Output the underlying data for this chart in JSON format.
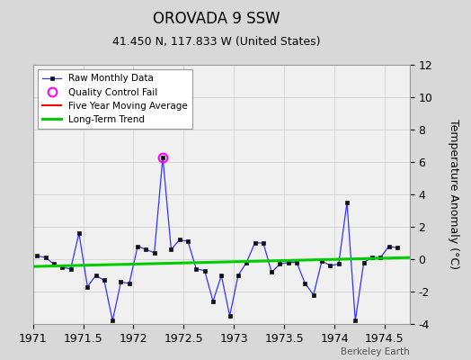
{
  "title": "OROVADA 9 SSW",
  "subtitle": "41.450 N, 117.833 W (United States)",
  "ylabel": "Temperature Anomaly (°C)",
  "attribution": "Berkeley Earth",
  "xlim": [
    1971.0,
    1974.75
  ],
  "ylim": [
    -4,
    12
  ],
  "yticks": [
    -4,
    -2,
    0,
    2,
    4,
    6,
    8,
    10,
    12
  ],
  "xticks": [
    1971.0,
    1971.5,
    1972.0,
    1972.5,
    1973.0,
    1973.5,
    1974.0,
    1974.5
  ],
  "background_color": "#d8d8d8",
  "plot_background": "#f0f0f0",
  "raw_x": [
    1971.042,
    1971.125,
    1971.208,
    1971.292,
    1971.375,
    1971.458,
    1971.542,
    1971.625,
    1971.708,
    1971.792,
    1971.875,
    1971.958,
    1972.042,
    1972.125,
    1972.208,
    1972.292,
    1972.375,
    1972.458,
    1972.542,
    1972.625,
    1972.708,
    1972.792,
    1972.875,
    1972.958,
    1973.042,
    1973.125,
    1973.208,
    1973.292,
    1973.375,
    1973.458,
    1973.542,
    1973.625,
    1973.708,
    1973.792,
    1973.875,
    1973.958,
    1974.042,
    1974.125,
    1974.208,
    1974.292,
    1974.375,
    1974.458,
    1974.542,
    1974.625
  ],
  "raw_y": [
    0.2,
    0.1,
    -0.3,
    -0.5,
    -0.6,
    1.6,
    -1.7,
    -1.0,
    -1.3,
    -3.8,
    -1.4,
    -1.5,
    0.8,
    0.6,
    0.4,
    6.3,
    0.6,
    1.2,
    1.1,
    -0.6,
    -0.7,
    -2.6,
    -1.0,
    -3.5,
    -1.0,
    -0.2,
    1.0,
    1.0,
    -0.8,
    -0.3,
    -0.2,
    -0.2,
    -1.5,
    -2.2,
    -0.1,
    -0.4,
    -0.3,
    3.5,
    -3.8,
    -0.2,
    0.1,
    0.1,
    0.8,
    0.7
  ],
  "qc_fail_x": [
    1972.292
  ],
  "qc_fail_y": [
    6.3
  ],
  "trend_x": [
    1971.0,
    1974.75
  ],
  "trend_y": [
    -0.45,
    0.1
  ],
  "raw_color": "#3333ff",
  "qc_color": "#ff00ff",
  "trend_color": "#00cc00",
  "moving_avg_color": "#ff0000",
  "grid_color": "#cccccc",
  "title_fontsize": 12,
  "subtitle_fontsize": 9,
  "label_fontsize": 9,
  "tick_fontsize": 9
}
